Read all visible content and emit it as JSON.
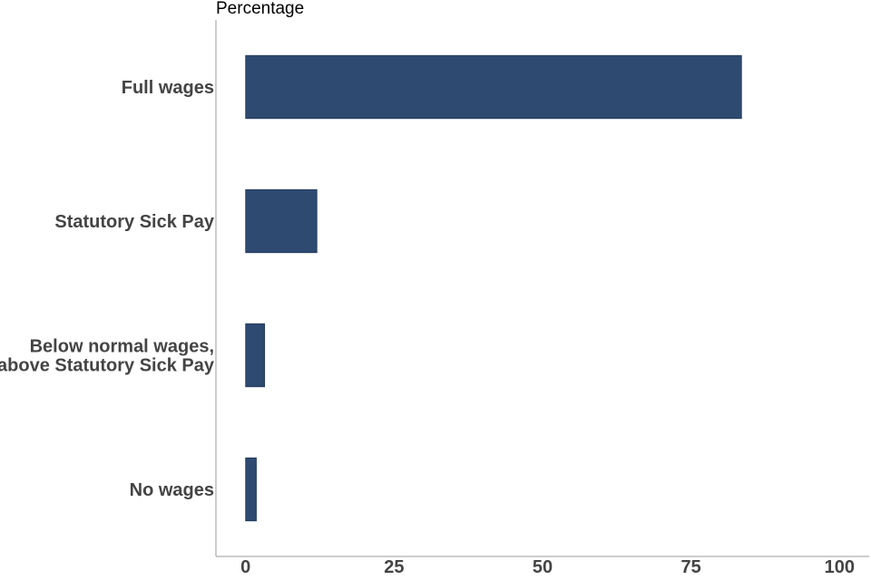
{
  "chart_data": {
    "type": "bar",
    "orientation": "horizontal",
    "title": "",
    "xlabel": "Percentage",
    "ylabel": "",
    "categories": [
      [
        "Full wages"
      ],
      [
        "Statutory Sick Pay"
      ],
      [
        "Below normal wages,",
        "above Statutory Sick Pay"
      ],
      [
        "No wages"
      ]
    ],
    "values": [
      83.5,
      12,
      3.2,
      1.8
    ],
    "xlim": [
      -5,
      105
    ],
    "xticks": [
      0,
      25,
      50,
      75,
      100
    ],
    "grid": false,
    "legend": "none",
    "colors": {
      "bar": "#2e4a70",
      "axis": "#999999",
      "text": "#444444"
    }
  }
}
